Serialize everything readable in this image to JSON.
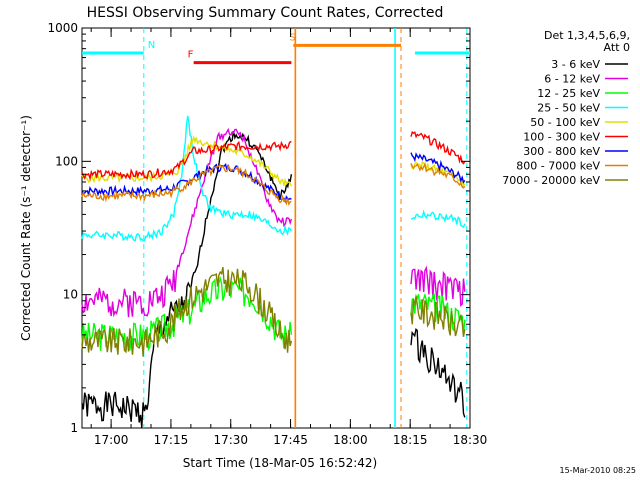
{
  "chart_data": {
    "type": "line",
    "title": "HESSI Observing Summary Count Rates, Corrected",
    "xlabel": "Start Time (18-Mar-05 16:52:42)",
    "ylabel": "Corrected Count Rate (s⁻¹ detector⁻¹)",
    "x_unit": "minutes since 16:52:42",
    "xlim": [
      0,
      97.3
    ],
    "ylim": [
      1,
      1000
    ],
    "yscale": "log",
    "x_ticks": [
      {
        "x": 7.3,
        "label": "17:00"
      },
      {
        "x": 22.3,
        "label": "17:15"
      },
      {
        "x": 37.3,
        "label": "17:30"
      },
      {
        "x": 52.3,
        "label": "17:45"
      },
      {
        "x": 67.3,
        "label": "18:00"
      },
      {
        "x": 82.3,
        "label": "18:15"
      },
      {
        "x": 97.3,
        "label": "18:30"
      }
    ],
    "y_ticks": [
      {
        "y": 1,
        "label": "1"
      },
      {
        "y": 10,
        "label": "10"
      },
      {
        "y": 100,
        "label": "100"
      },
      {
        "y": 1000,
        "label": "1000"
      }
    ],
    "legend": {
      "header": [
        "Det 1,3,4,5,6,9,",
        "Att 0"
      ],
      "placement": "right"
    },
    "series": [
      {
        "name": "3 - 6 keV",
        "color": "#000000",
        "segments": [
          [
            [
              0,
              1.5
            ],
            [
              8,
              1.5
            ],
            [
              16,
              1.3
            ],
            [
              18.5,
              5
            ],
            [
              22,
              7
            ],
            [
              25,
              8
            ],
            [
              28,
              12
            ],
            [
              31,
              35
            ],
            [
              35,
              120
            ],
            [
              38,
              160
            ],
            [
              41,
              150
            ],
            [
              44,
              120
            ],
            [
              47,
              80
            ],
            [
              49.5,
              55
            ],
            [
              51,
              60
            ],
            [
              52.5,
              80
            ]
          ],
          [
            [
              82.5,
              5
            ],
            [
              85,
              4
            ],
            [
              87,
              3.5
            ],
            [
              89,
              3
            ],
            [
              91,
              2.5
            ],
            [
              93,
              2
            ],
            [
              95,
              1.8
            ],
            [
              96,
              1.2
            ]
          ]
        ]
      },
      {
        "name": "6 - 12 keV",
        "color": "#e000e0",
        "segments": [
          [
            [
              0,
              9
            ],
            [
              8,
              9
            ],
            [
              16,
              9
            ],
            [
              20,
              10
            ],
            [
              23,
              13
            ],
            [
              25,
              20
            ],
            [
              28,
              40
            ],
            [
              31,
              80
            ],
            [
              34,
              150
            ],
            [
              37,
              170
            ],
            [
              40,
              160
            ],
            [
              43,
              100
            ],
            [
              46,
              55
            ],
            [
              49,
              37
            ],
            [
              51,
              35
            ],
            [
              52.5,
              37
            ]
          ],
          [
            [
              82.5,
              13
            ],
            [
              86,
              13
            ],
            [
              89,
              12
            ],
            [
              92,
              11.5
            ],
            [
              96,
              10.5
            ]
          ]
        ]
      },
      {
        "name": "12 - 25 keV",
        "color": "#00ff00",
        "segments": [
          [
            [
              0,
              5
            ],
            [
              8,
              5
            ],
            [
              16,
              5
            ],
            [
              22,
              6
            ],
            [
              25,
              7
            ],
            [
              28,
              8
            ],
            [
              31,
              10
            ],
            [
              35,
              11
            ],
            [
              39,
              11
            ],
            [
              43,
              10
            ],
            [
              47,
              7
            ],
            [
              50,
              5
            ],
            [
              52.5,
              5
            ]
          ],
          [
            [
              82.5,
              9
            ],
            [
              86,
              8.5
            ],
            [
              90,
              8
            ],
            [
              93,
              7
            ],
            [
              96,
              6.5
            ]
          ]
        ]
      },
      {
        "name": "25 - 50 keV",
        "color": "#00ffff",
        "segments": [
          [
            [
              0,
              28
            ],
            [
              8,
              28
            ],
            [
              16,
              27
            ],
            [
              20,
              30
            ],
            [
              23,
              40
            ],
            [
              25,
              80
            ],
            [
              26.5,
              220
            ],
            [
              28,
              110
            ],
            [
              30,
              60
            ],
            [
              32,
              45
            ],
            [
              36,
              40
            ],
            [
              42,
              40
            ],
            [
              46,
              35
            ],
            [
              50,
              30
            ],
            [
              52.5,
              30
            ]
          ],
          [
            [
              82.5,
              38
            ],
            [
              86,
              40
            ],
            [
              90,
              38
            ],
            [
              93,
              37
            ],
            [
              96,
              34
            ]
          ]
        ]
      },
      {
        "name": "50 - 100 keV",
        "color": "#e0e000",
        "segments": [
          [
            [
              0,
              75
            ],
            [
              8,
              75
            ],
            [
              16,
              75
            ],
            [
              22,
              80
            ],
            [
              24,
              85
            ],
            [
              26,
              110
            ],
            [
              28,
              150
            ],
            [
              30,
              140
            ],
            [
              34,
              130
            ],
            [
              38,
              120
            ],
            [
              42,
              110
            ],
            [
              46,
              90
            ],
            [
              50,
              70
            ],
            [
              52.5,
              65
            ]
          ],
          [
            [
              82.5,
              95
            ],
            [
              86,
              92
            ],
            [
              90,
              85
            ],
            [
              93,
              78
            ],
            [
              96,
              68
            ]
          ]
        ]
      },
      {
        "name": "100 - 300 keV",
        "color": "#ff0000",
        "segments": [
          [
            [
              0,
              80
            ],
            [
              8,
              80
            ],
            [
              16,
              80
            ],
            [
              22,
              85
            ],
            [
              24,
              90
            ],
            [
              26,
              105
            ],
            [
              28,
              120
            ],
            [
              30,
              120
            ],
            [
              34,
              125
            ],
            [
              38,
              130
            ],
            [
              42,
              130
            ],
            [
              46,
              130
            ],
            [
              50,
              130
            ],
            [
              52,
              135
            ],
            [
              52.5,
              140
            ]
          ],
          [
            [
              82.5,
              160
            ],
            [
              86,
              150
            ],
            [
              90,
              130
            ],
            [
              93,
              115
            ],
            [
              96,
              100
            ]
          ]
        ]
      },
      {
        "name": "300 - 800 keV",
        "color": "#0000ff",
        "segments": [
          [
            [
              0,
              60
            ],
            [
              8,
              60
            ],
            [
              16,
              60
            ],
            [
              22,
              62
            ],
            [
              26,
              70
            ],
            [
              30,
              82
            ],
            [
              34,
              90
            ],
            [
              38,
              90
            ],
            [
              42,
              80
            ],
            [
              46,
              65
            ],
            [
              50,
              55
            ],
            [
              52.5,
              52
            ]
          ],
          [
            [
              82.5,
              110
            ],
            [
              86,
              103
            ],
            [
              90,
              92
            ],
            [
              93,
              82
            ],
            [
              96,
              72
            ]
          ]
        ]
      },
      {
        "name": "800 - 7000 keV",
        "color": "#e08000",
        "segments": [
          [
            [
              0,
              55
            ],
            [
              8,
              55
            ],
            [
              16,
              55
            ],
            [
              22,
              58
            ],
            [
              26,
              66
            ],
            [
              30,
              78
            ],
            [
              34,
              88
            ],
            [
              38,
              88
            ],
            [
              42,
              78
            ],
            [
              46,
              62
            ],
            [
              50,
              52
            ],
            [
              52.5,
              50
            ]
          ],
          [
            [
              82.5,
              95
            ],
            [
              86,
              90
            ],
            [
              90,
              82
            ],
            [
              93,
              75
            ],
            [
              96,
              65
            ]
          ]
        ]
      },
      {
        "name": "7000 - 20000 keV",
        "color": "#808000",
        "segments": [
          [
            [
              0,
              4.5
            ],
            [
              8,
              4.5
            ],
            [
              16,
              4.5
            ],
            [
              22,
              6
            ],
            [
              26,
              9
            ],
            [
              30,
              11
            ],
            [
              34,
              13
            ],
            [
              38,
              13
            ],
            [
              42,
              12
            ],
            [
              46,
              8
            ],
            [
              50,
              5
            ],
            [
              52.5,
              4.5
            ]
          ],
          [
            [
              82.5,
              8
            ],
            [
              86,
              7.5
            ],
            [
              90,
              7
            ],
            [
              93,
              6
            ],
            [
              96,
              5.5
            ]
          ]
        ]
      }
    ],
    "annotations": {
      "flag_lines": [
        {
          "label": "N",
          "color": "#00ffff",
          "y": 650,
          "segments": [
            [
              0,
              15.5
            ],
            [
              83.5,
              97.3
            ]
          ],
          "label_x": 16.5,
          "dashed_x": [
            15.5,
            96.5
          ]
        },
        {
          "label": "F",
          "color": "#ff0000",
          "y": 550,
          "segments": [
            [
              28,
              52.5
            ]
          ],
          "label_x": 26.5,
          "dashed_x": []
        },
        {
          "label": "S",
          "color": "#ff8000",
          "y": 740,
          "segments": [
            [
              53,
              80
            ]
          ],
          "label_x": 52,
          "dashed_x": [
            80
          ],
          "solid_x": [
            53.5
          ]
        }
      ],
      "solid_vlines": [
        {
          "x": 53.5,
          "color": "#ff8000"
        },
        {
          "x": 78.5,
          "color": "#00ffff"
        }
      ]
    }
  },
  "footer": {
    "timestamp": "15-Mar-2010 08:25"
  }
}
